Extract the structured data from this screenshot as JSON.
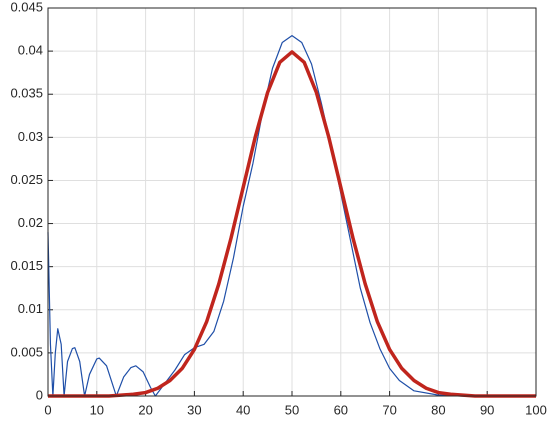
{
  "chart_data": {
    "type": "line",
    "xlim": [
      0,
      100
    ],
    "xticks": [
      0,
      10,
      20,
      30,
      40,
      50,
      60,
      70,
      80,
      90,
      100
    ],
    "ylim": [
      0,
      0.045
    ],
    "yticks": [
      0,
      0.005,
      0.01,
      0.015,
      0.02,
      0.025,
      0.03,
      0.035,
      0.04,
      0.045
    ],
    "grid": true,
    "series": [
      {
        "color": "#1f4fa8",
        "line_width": 1.2,
        "x": [
          0,
          0.5,
          1,
          1.5,
          2,
          2.7,
          3.3,
          4,
          5,
          5.5,
          6.5,
          7.5,
          8.5,
          10,
          10.5,
          12,
          14,
          15.5,
          17,
          18,
          19.5,
          21,
          22,
          24,
          26,
          28,
          30,
          32,
          34,
          36,
          38,
          40,
          42,
          44,
          46,
          48,
          50,
          52,
          54,
          56,
          58,
          60,
          62,
          64,
          66,
          68,
          70,
          72,
          75,
          80,
          85,
          90,
          100
        ],
        "values": [
          0.019,
          0.006,
          0,
          0.005,
          0.0078,
          0.006,
          0,
          0.004,
          0.0055,
          0.0056,
          0.004,
          0,
          0.0025,
          0.0043,
          0.0044,
          0.0035,
          0,
          0.0022,
          0.0033,
          0.0035,
          0.0028,
          0.001,
          0,
          0.0015,
          0.003,
          0.0048,
          0.0056,
          0.006,
          0.0075,
          0.011,
          0.016,
          0.022,
          0.027,
          0.033,
          0.038,
          0.041,
          0.0418,
          0.041,
          0.0385,
          0.034,
          0.029,
          0.0235,
          0.018,
          0.0125,
          0.0085,
          0.0055,
          0.0032,
          0.0018,
          0.0006,
          0.0001,
          0,
          0,
          0
        ]
      },
      {
        "color": "#c0251d",
        "line_width": 3.5,
        "x": [
          0,
          2.5,
          5,
          7.5,
          10,
          12.5,
          15,
          17.5,
          20,
          22.5,
          25,
          27.5,
          30,
          32.5,
          35,
          37.5,
          40,
          42.5,
          45,
          47.5,
          50,
          52.5,
          55,
          57.5,
          60,
          62.5,
          65,
          67.5,
          70,
          72.5,
          75,
          77.5,
          80,
          82.5,
          85,
          87.5,
          90,
          92.5,
          95,
          97.5,
          100
        ],
        "values": [
          0,
          0,
          0,
          0,
          0,
          0,
          0.0001,
          0.0002,
          0.0004,
          0.0009,
          0.0018,
          0.0032,
          0.0054,
          0.0086,
          0.013,
          0.0183,
          0.0242,
          0.0301,
          0.0352,
          0.0387,
          0.0399,
          0.0387,
          0.0352,
          0.0301,
          0.0242,
          0.0183,
          0.013,
          0.0086,
          0.0054,
          0.0032,
          0.0018,
          0.0009,
          0.0004,
          0.0002,
          0.0001,
          0,
          0,
          0,
          0,
          0,
          0
        ]
      }
    ]
  }
}
